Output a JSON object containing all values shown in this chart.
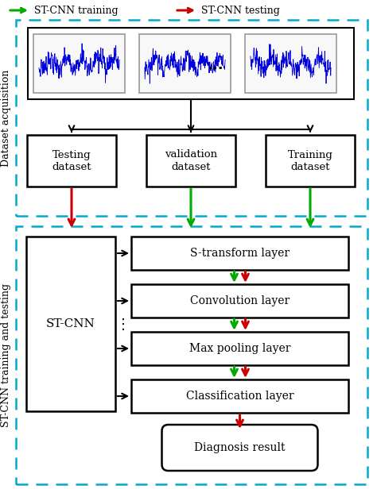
{
  "legend_green": "ST-CNN training",
  "legend_red": "ST-CNN testing",
  "top_box_label": "Dataset acquisition",
  "bottom_box_label": "ST-CNN training and testing",
  "dataset_labels": [
    "Testing\ndataset",
    "validation\ndataset",
    "Training\ndataset"
  ],
  "layer_labels": [
    "S-transform layer",
    "Convolution layer",
    "Max pooling layer",
    "Classification layer"
  ],
  "stcnn_label": "ST-CNN",
  "result_label": "Diagnosis result",
  "color_green": "#00aa00",
  "color_red": "#cc0000",
  "color_black": "#000000",
  "color_cyan_dashed": "#00aacc",
  "bg_color": "#ffffff",
  "signal_wave_color": "#0000dd",
  "signal_box_edge": "#999999",
  "signal_box_face": "#f8f8f8"
}
